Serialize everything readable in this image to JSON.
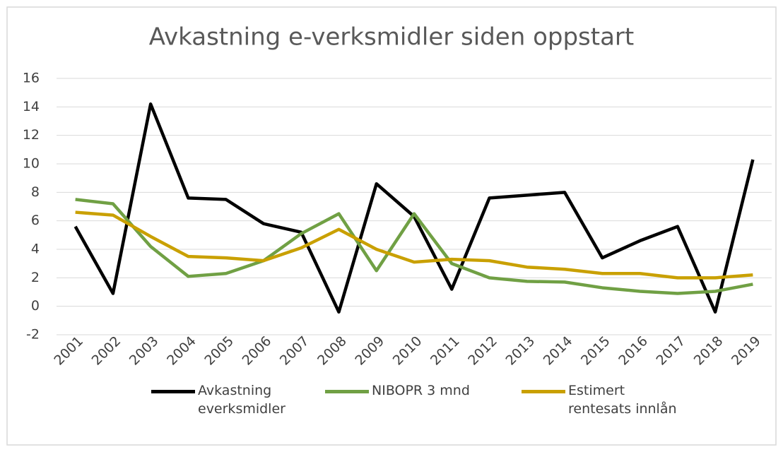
{
  "chart_data": {
    "type": "line",
    "title": "Avkastning e-verksmidler siden oppstart",
    "categories": [
      "2001",
      "2002",
      "2003",
      "2004",
      "2005",
      "2006",
      "2007",
      "2008",
      "2009",
      "2010",
      "2011",
      "2012",
      "2013",
      "2014",
      "2015",
      "2016",
      "2017",
      "2018",
      "2019"
    ],
    "series": [
      {
        "name": "Avkastning everksmidler",
        "color": "#000000",
        "values": [
          5.6,
          0.9,
          14.2,
          7.6,
          7.5,
          5.8,
          5.2,
          -0.4,
          8.6,
          6.3,
          1.2,
          7.6,
          7.8,
          8.0,
          3.4,
          4.6,
          5.6,
          -0.4,
          10.3
        ]
      },
      {
        "name": "NIBOPR 3 mnd",
        "color": "#70a044",
        "values": [
          7.5,
          7.2,
          4.2,
          2.1,
          2.3,
          3.2,
          5.1,
          6.5,
          2.5,
          6.5,
          3.0,
          2.0,
          1.75,
          1.7,
          1.3,
          1.05,
          0.9,
          1.05,
          1.55
        ]
      },
      {
        "name": "Estimert rentesats innlån",
        "color": "#c9a000",
        "values": [
          6.6,
          6.4,
          4.9,
          3.5,
          3.4,
          3.2,
          4.1,
          5.4,
          4.0,
          3.1,
          3.3,
          3.2,
          2.75,
          2.6,
          2.3,
          2.3,
          2.0,
          2.0,
          2.2
        ]
      }
    ],
    "ylim": [
      -2,
      16
    ],
    "yticks": [
      -2,
      0,
      2,
      4,
      6,
      8,
      10,
      12,
      14,
      16
    ],
    "grid": true,
    "legend": "bottom"
  }
}
